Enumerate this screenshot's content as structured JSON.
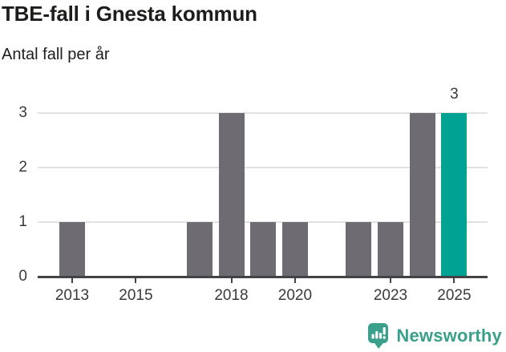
{
  "header": {
    "title": "TBE-fall i Gnesta kommun",
    "subtitle": "Antal fall per år"
  },
  "chart_data": {
    "type": "bar",
    "title": "TBE-fall i Gnesta kommun",
    "subtitle": "Antal fall per år",
    "categories": [
      "2013",
      "2014",
      "2015",
      "2016",
      "2017",
      "2018",
      "2019",
      "2020",
      "2021",
      "2022",
      "2023",
      "2024",
      "2025"
    ],
    "values": [
      1,
      0,
      0,
      0,
      1,
      3,
      1,
      1,
      0,
      1,
      1,
      3,
      3
    ],
    "x_tick_labels": [
      "2013",
      "2015",
      "2018",
      "2020",
      "2023",
      "2025"
    ],
    "y_tick_labels": [
      "0",
      "1",
      "2",
      "3"
    ],
    "ylim": [
      0,
      3
    ],
    "grid": true,
    "legend": "none",
    "highlight_year": "2025",
    "highlight_value_label": "3",
    "colors": {
      "bar": "#6e6b73",
      "highlight": "#00a294",
      "gridline": "#e1e1e1",
      "axis": "#434347",
      "label": "#3a3a3a"
    }
  },
  "branding": {
    "logo_text": "Newsworthy",
    "logo_color": "#3aa08c",
    "logo_icon": "newsworthy-speech-bubble-bar-chart-icon"
  }
}
